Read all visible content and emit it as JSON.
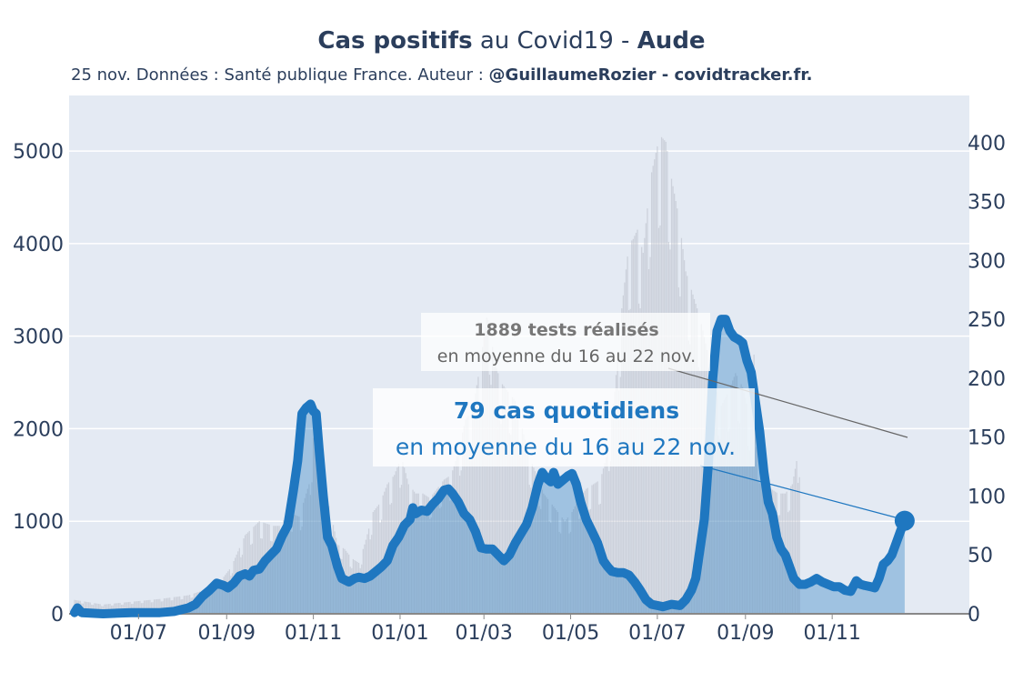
{
  "title": {
    "part1": "Cas positifs",
    "part2": " au Covid19 - ",
    "part3": "Aude"
  },
  "subtitle": {
    "text": "25 nov. Données : Santé publique France. Auteur : ",
    "author": "@GuillaumeRozier - covidtracker.fr."
  },
  "annotation_tests": {
    "bold": "1889 tests réalisés",
    "text": "en moyenne du 16 au 22 nov."
  },
  "annotation_cases": {
    "bold": "79 cas quotidiens",
    "text": "en moyenne du 16 au 22 nov."
  },
  "colors": {
    "cases": "#1f77c0",
    "tests": "#b8bcc6",
    "plot_bg": "#e4eaf3",
    "text": "#2b3e5c"
  },
  "chart_data": {
    "type": "area",
    "x_ticks": [
      "01/07",
      "01/09",
      "01/11",
      "01/01",
      "01/03",
      "01/05",
      "01/07",
      "01/09",
      "01/11"
    ],
    "y_left_ticks": [
      0,
      1000,
      2000,
      3000,
      4000,
      5000
    ],
    "y_right_ticks": [
      0,
      50,
      100,
      150,
      200,
      250,
      300,
      350,
      400
    ],
    "y_left_range": [
      0,
      5600
    ],
    "y_right_range": [
      0,
      440
    ],
    "x_range_days": [
      0,
      586
    ],
    "series": [
      {
        "name": "tests",
        "axis": "left",
        "kind": "bars",
        "points": [
          [
            0,
            150
          ],
          [
            20,
            100
          ],
          [
            40,
            130
          ],
          [
            60,
            160
          ],
          [
            80,
            200
          ],
          [
            100,
            300
          ],
          [
            110,
            500
          ],
          [
            120,
            850
          ],
          [
            130,
            1000
          ],
          [
            140,
            950
          ],
          [
            145,
            950
          ],
          [
            150,
            1100
          ],
          [
            158,
            1050
          ],
          [
            165,
            1400
          ],
          [
            168,
            1900
          ],
          [
            170,
            1700
          ],
          [
            173,
            1500
          ],
          [
            176,
            1350
          ],
          [
            180,
            1100
          ],
          [
            185,
            750
          ],
          [
            190,
            700
          ],
          [
            195,
            600
          ],
          [
            200,
            550
          ],
          [
            205,
            800
          ],
          [
            210,
            1100
          ],
          [
            215,
            1200
          ],
          [
            220,
            1400
          ],
          [
            225,
            1500
          ],
          [
            230,
            1700
          ],
          [
            235,
            1400
          ],
          [
            240,
            1300
          ],
          [
            245,
            1300
          ],
          [
            250,
            1250
          ],
          [
            255,
            1350
          ],
          [
            260,
            1450
          ],
          [
            265,
            1500
          ],
          [
            270,
            1750
          ],
          [
            275,
            2100
          ],
          [
            280,
            2200
          ],
          [
            285,
            2650
          ],
          [
            288,
            3000
          ],
          [
            290,
            3200
          ],
          [
            292,
            3150
          ],
          [
            295,
            2750
          ],
          [
            300,
            2500
          ],
          [
            305,
            2400
          ],
          [
            310,
            2300
          ],
          [
            315,
            2000
          ],
          [
            320,
            1700
          ],
          [
            325,
            1500
          ],
          [
            330,
            1300
          ],
          [
            335,
            1200
          ],
          [
            340,
            1100
          ],
          [
            345,
            1000
          ],
          [
            350,
            1100
          ],
          [
            355,
            1250
          ],
          [
            360,
            1350
          ],
          [
            365,
            1400
          ],
          [
            370,
            1450
          ],
          [
            375,
            1750
          ],
          [
            380,
            2400
          ],
          [
            385,
            3300
          ],
          [
            390,
            4000
          ],
          [
            393,
            4050
          ],
          [
            396,
            4150
          ],
          [
            400,
            3900
          ],
          [
            405,
            4700
          ],
          [
            410,
            5050
          ],
          [
            413,
            5150
          ],
          [
            416,
            5100
          ],
          [
            420,
            4700
          ],
          [
            425,
            4300
          ],
          [
            430,
            3700
          ],
          [
            435,
            3450
          ],
          [
            440,
            3200
          ],
          [
            445,
            2850
          ],
          [
            450,
            2500
          ],
          [
            455,
            2250
          ],
          [
            460,
            2400
          ],
          [
            465,
            2600
          ],
          [
            470,
            2450
          ],
          [
            475,
            2150
          ],
          [
            478,
            2800
          ],
          [
            480,
            1800
          ],
          [
            485,
            1600
          ],
          [
            490,
            1350
          ],
          [
            495,
            1300
          ],
          [
            500,
            1300
          ],
          [
            505,
            1400
          ],
          [
            508,
            1650
          ],
          [
            510,
            1800
          ]
        ]
      },
      {
        "name": "cases",
        "axis": "right",
        "kind": "line",
        "points": [
          [
            0,
            1
          ],
          [
            2,
            5
          ],
          [
            5,
            1
          ],
          [
            20,
            0
          ],
          [
            40,
            1
          ],
          [
            60,
            1
          ],
          [
            70,
            2
          ],
          [
            80,
            5
          ],
          [
            85,
            8
          ],
          [
            90,
            15
          ],
          [
            95,
            20
          ],
          [
            100,
            26
          ],
          [
            105,
            24
          ],
          [
            108,
            22
          ],
          [
            112,
            26
          ],
          [
            116,
            32
          ],
          [
            120,
            34
          ],
          [
            123,
            32
          ],
          [
            126,
            37
          ],
          [
            130,
            38
          ],
          [
            134,
            45
          ],
          [
            138,
            50
          ],
          [
            142,
            55
          ],
          [
            146,
            66
          ],
          [
            150,
            75
          ],
          [
            154,
            105
          ],
          [
            157,
            130
          ],
          [
            160,
            170
          ],
          [
            163,
            175
          ],
          [
            166,
            178
          ],
          [
            168,
            172
          ],
          [
            170,
            170
          ],
          [
            172,
            140
          ],
          [
            175,
            100
          ],
          [
            178,
            65
          ],
          [
            181,
            58
          ],
          [
            185,
            40
          ],
          [
            188,
            30
          ],
          [
            193,
            27
          ],
          [
            197,
            30
          ],
          [
            200,
            31
          ],
          [
            204,
            30
          ],
          [
            208,
            32
          ],
          [
            212,
            36
          ],
          [
            216,
            40
          ],
          [
            220,
            45
          ],
          [
            224,
            58
          ],
          [
            228,
            65
          ],
          [
            232,
            75
          ],
          [
            236,
            80
          ],
          [
            238,
            90
          ],
          [
            240,
            85
          ],
          [
            244,
            88
          ],
          [
            248,
            87
          ],
          [
            252,
            93
          ],
          [
            256,
            98
          ],
          [
            260,
            105
          ],
          [
            263,
            106
          ],
          [
            266,
            102
          ],
          [
            270,
            95
          ],
          [
            274,
            85
          ],
          [
            278,
            80
          ],
          [
            282,
            70
          ],
          [
            286,
            56
          ],
          [
            290,
            55
          ],
          [
            294,
            55
          ],
          [
            298,
            50
          ],
          [
            302,
            45
          ],
          [
            306,
            50
          ],
          [
            310,
            60
          ],
          [
            314,
            68
          ],
          [
            318,
            76
          ],
          [
            322,
            90
          ],
          [
            326,
            110
          ],
          [
            329,
            120
          ],
          [
            332,
            115
          ],
          [
            335,
            112
          ],
          [
            337,
            120
          ],
          [
            340,
            110
          ],
          [
            343,
            113
          ],
          [
            347,
            117
          ],
          [
            350,
            119
          ],
          [
            353,
            110
          ],
          [
            356,
            95
          ],
          [
            360,
            80
          ],
          [
            364,
            70
          ],
          [
            368,
            60
          ],
          [
            372,
            45
          ],
          [
            375,
            40
          ],
          [
            378,
            36
          ],
          [
            382,
            35
          ],
          [
            386,
            35
          ],
          [
            390,
            33
          ],
          [
            394,
            27
          ],
          [
            398,
            20
          ],
          [
            402,
            12
          ],
          [
            406,
            8
          ],
          [
            410,
            7
          ],
          [
            414,
            6
          ],
          [
            420,
            8
          ],
          [
            426,
            7
          ],
          [
            430,
            12
          ],
          [
            434,
            20
          ],
          [
            437,
            30
          ],
          [
            440,
            55
          ],
          [
            443,
            80
          ],
          [
            446,
            130
          ],
          [
            449,
            200
          ],
          [
            452,
            240
          ],
          [
            455,
            250
          ],
          [
            458,
            250
          ],
          [
            461,
            240
          ],
          [
            464,
            235
          ],
          [
            467,
            233
          ],
          [
            470,
            230
          ],
          [
            473,
            215
          ],
          [
            476,
            205
          ],
          [
            479,
            180
          ],
          [
            482,
            155
          ],
          [
            485,
            120
          ],
          [
            488,
            95
          ],
          [
            491,
            85
          ],
          [
            494,
            65
          ],
          [
            497,
            55
          ],
          [
            500,
            50
          ],
          [
            503,
            40
          ],
          [
            506,
            30
          ],
          [
            510,
            25
          ],
          [
            514,
            25
          ],
          [
            518,
            27
          ],
          [
            522,
            30
          ],
          [
            526,
            27
          ],
          [
            530,
            25
          ],
          [
            534,
            23
          ],
          [
            538,
            23
          ],
          [
            542,
            20
          ],
          [
            546,
            19
          ],
          [
            550,
            28
          ],
          [
            553,
            25
          ],
          [
            556,
            24
          ],
          [
            560,
            23
          ],
          [
            563,
            22
          ],
          [
            566,
            30
          ],
          [
            569,
            42
          ],
          [
            572,
            45
          ],
          [
            575,
            50
          ],
          [
            578,
            60
          ],
          [
            581,
            70
          ],
          [
            584,
            79
          ]
        ]
      }
    ],
    "grid": true,
    "xlabel": "",
    "ylabel": ""
  }
}
